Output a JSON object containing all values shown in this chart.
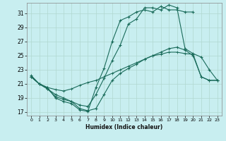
{
  "xlabel": "Humidex (Indice chaleur)",
  "background_color": "#c8eef0",
  "grid_color": "#b0d8d0",
  "line_color": "#1a6b5a",
  "xlim": [
    -0.5,
    23.5
  ],
  "ylim": [
    16.5,
    32.5
  ],
  "xticks": [
    0,
    1,
    2,
    3,
    4,
    5,
    6,
    7,
    8,
    9,
    10,
    11,
    12,
    13,
    14,
    15,
    16,
    17,
    18,
    19,
    20,
    21,
    22,
    23
  ],
  "yticks": [
    17,
    19,
    21,
    23,
    25,
    27,
    29,
    31
  ],
  "line1_x": [
    0,
    1,
    2,
    3,
    4,
    5,
    6,
    7,
    8,
    9,
    10,
    11,
    12,
    13,
    14,
    15,
    16,
    17,
    18,
    19,
    20
  ],
  "line1_y": [
    22.2,
    21.0,
    20.5,
    19.0,
    18.5,
    18.2,
    17.3,
    17.1,
    20.5,
    23.2,
    27.0,
    30.0,
    30.5,
    31.2,
    31.5,
    31.2,
    32.0,
    31.5,
    31.5,
    31.2,
    31.2
  ],
  "line2_x": [
    0,
    1,
    2,
    3,
    4,
    5,
    6,
    7,
    8,
    9,
    10,
    11,
    12,
    13,
    14,
    15,
    16,
    17,
    18,
    19,
    20,
    21,
    22,
    23
  ],
  "line2_y": [
    22.0,
    21.0,
    20.3,
    19.2,
    18.8,
    18.5,
    18.0,
    17.8,
    19.5,
    21.8,
    24.3,
    26.5,
    29.5,
    30.2,
    31.8,
    31.8,
    31.5,
    32.2,
    31.8,
    26.0,
    25.3,
    24.8,
    23.0,
    21.5
  ],
  "line3_x": [
    0,
    1,
    2,
    3,
    4,
    5,
    6,
    7,
    8,
    9,
    10,
    11,
    12,
    13,
    14,
    15,
    16,
    17,
    18,
    19,
    20,
    21,
    22,
    23
  ],
  "line3_y": [
    22.0,
    21.0,
    20.5,
    20.2,
    20.0,
    20.3,
    20.8,
    21.2,
    21.5,
    22.0,
    22.5,
    23.0,
    23.5,
    24.0,
    24.5,
    25.0,
    25.2,
    25.5,
    25.5,
    25.3,
    25.2,
    22.0,
    21.5,
    21.5
  ],
  "line4_x": [
    0,
    1,
    2,
    3,
    4,
    5,
    6,
    7,
    8,
    9,
    10,
    11,
    12,
    13,
    14,
    15,
    16,
    17,
    18,
    19,
    20,
    21,
    22,
    23
  ],
  "line4_y": [
    22.0,
    21.0,
    20.3,
    19.5,
    19.0,
    18.5,
    17.5,
    17.2,
    17.5,
    19.5,
    21.5,
    22.5,
    23.2,
    23.8,
    24.5,
    25.0,
    25.5,
    26.0,
    26.2,
    25.8,
    25.0,
    22.0,
    21.5,
    21.5
  ]
}
